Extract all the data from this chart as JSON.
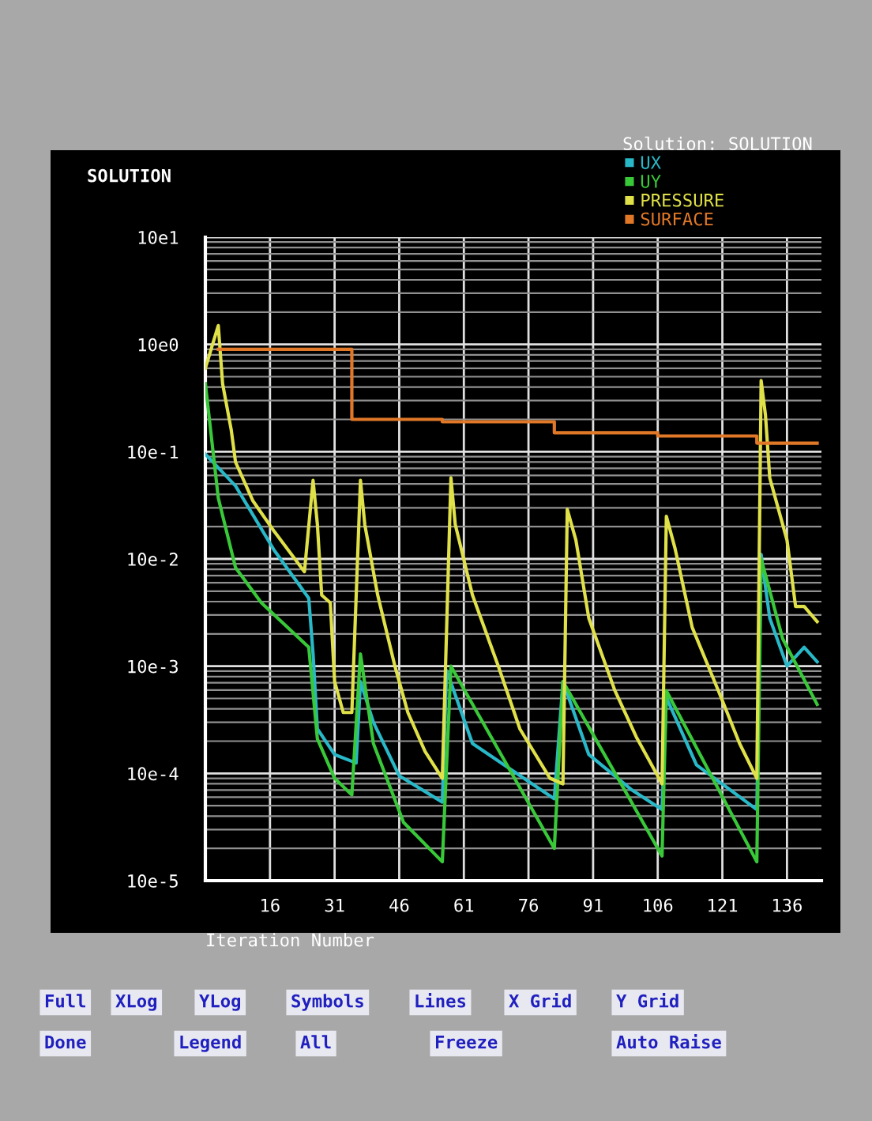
{
  "chart_data": {
    "type": "line",
    "title": "SOLUTION",
    "legend_title": "Solution: SOLUTION",
    "xlabel": "Iteration Number",
    "xlim": [
      1,
      144
    ],
    "xticks": [
      16,
      31,
      46,
      61,
      76,
      91,
      106,
      121,
      136
    ],
    "ylim": [
      0.0001,
      100
    ],
    "yticks": [
      {
        "value": 100,
        "label": "10e1"
      },
      {
        "value": 10,
        "label": "10e0"
      },
      {
        "value": 1,
        "label": "10e-1"
      },
      {
        "value": 0.1,
        "label": "10e-2"
      },
      {
        "value": 0.01,
        "label": "10e-3"
      },
      {
        "value": 0.001,
        "label": "10e-4"
      },
      {
        "value": 0.0001,
        "label": "10e-5"
      }
    ],
    "log": "y",
    "grid": true,
    "legend": "top right",
    "series": [
      {
        "name": "UX",
        "color": "#28b8c8",
        "x": [
          1,
          8,
          17,
          25,
          26,
          27,
          31,
          36,
          37,
          40,
          46,
          56,
          57,
          63,
          82,
          84,
          90,
          100,
          107,
          108,
          115,
          129,
          130,
          132,
          136,
          140,
          143
        ],
        "values": [
          0.95,
          0.48,
          0.12,
          0.043,
          0.013,
          0.0026,
          0.0015,
          0.00125,
          0.0072,
          0.003,
          0.00095,
          0.00054,
          0.0091,
          0.0019,
          0.00058,
          0.0072,
          0.0015,
          0.0007,
          0.00046,
          0.0051,
          0.0012,
          0.00046,
          0.11,
          0.028,
          0.01,
          0.015,
          0.011
        ]
      },
      {
        "name": "UY",
        "color": "#38c838",
        "x": [
          1,
          4,
          8,
          14,
          25,
          27,
          31,
          35,
          37,
          40,
          47,
          56,
          58,
          82,
          84,
          107,
          108,
          129,
          130,
          135,
          143
        ],
        "values": [
          4.3,
          0.37,
          0.083,
          0.039,
          0.015,
          0.0021,
          0.0009,
          0.00063,
          0.013,
          0.0019,
          0.00035,
          0.00015,
          0.01,
          0.0002,
          0.0072,
          0.00017,
          0.0059,
          0.00015,
          0.1,
          0.018,
          0.0044
        ]
      },
      {
        "name": "PRESSURE",
        "color": "#e0e048",
        "x": [
          1,
          4,
          5,
          7,
          8,
          12,
          17,
          24,
          26,
          27,
          28,
          30,
          31,
          33,
          35,
          37,
          38,
          41,
          45,
          48,
          52,
          56,
          58,
          59,
          63,
          69,
          74,
          81,
          84,
          85,
          87,
          90,
          96,
          101,
          107,
          108,
          110,
          114,
          120,
          125,
          129,
          130,
          131,
          132,
          136,
          138,
          140,
          143
        ],
        "values": [
          6,
          15,
          4.3,
          1.6,
          0.8,
          0.35,
          0.18,
          0.076,
          0.54,
          0.21,
          0.046,
          0.039,
          0.0072,
          0.0037,
          0.0037,
          0.54,
          0.21,
          0.046,
          0.01,
          0.0037,
          0.0016,
          0.0009,
          0.57,
          0.21,
          0.046,
          0.01,
          0.0026,
          0.0009,
          0.0008,
          0.29,
          0.15,
          0.028,
          0.006,
          0.0022,
          0.0008,
          0.25,
          0.126,
          0.023,
          0.006,
          0.0019,
          0.0009,
          4.6,
          2.2,
          0.57,
          0.15,
          0.036,
          0.036,
          0.026
        ]
      },
      {
        "name": "SURFACE",
        "color": "#e07828",
        "type": "step",
        "x": [
          4,
          35,
          56,
          82,
          106,
          129,
          143
        ],
        "values": [
          9,
          2,
          1.9,
          1.5,
          1.4,
          1.2,
          1.2
        ]
      }
    ],
    "annotations": [
      "Full",
      "XLog",
      "YLog",
      "Symbols",
      "Lines",
      "X Grid",
      "Y Grid",
      "Done",
      "Legend",
      "All",
      "Freeze",
      "Auto Raise"
    ]
  }
}
